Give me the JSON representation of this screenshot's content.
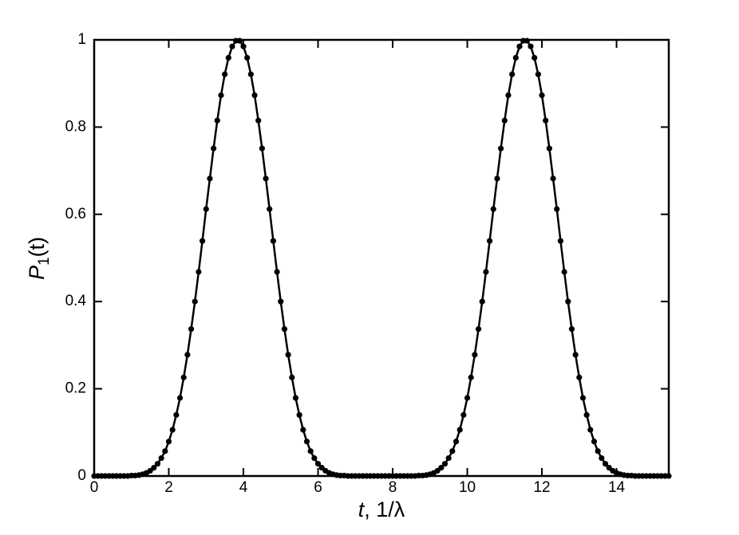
{
  "chart_data": {
    "type": "line",
    "ylabel_parts": [
      "P",
      "1",
      "(t)"
    ],
    "xlabel_parts": [
      "t",
      ", 1/λ"
    ],
    "x": [
      0,
      0.1,
      0.2,
      0.3,
      0.4,
      0.5,
      0.6,
      0.7,
      0.8,
      0.9,
      1,
      1.1,
      1.2,
      1.3,
      1.4,
      1.5,
      1.6,
      1.7,
      1.8,
      1.9,
      2,
      2.1,
      2.2,
      2.3,
      2.4,
      2.5,
      2.6,
      2.7,
      2.8,
      2.9,
      3,
      3.1,
      3.2,
      3.3,
      3.4,
      3.5,
      3.6,
      3.7,
      3.8,
      3.9,
      4,
      4.1,
      4.2,
      4.3,
      4.4,
      4.5,
      4.6,
      4.7,
      4.8,
      4.9,
      5,
      5.1,
      5.2,
      5.3,
      5.4,
      5.5,
      5.6,
      5.7,
      5.8,
      5.9,
      6,
      6.1,
      6.2,
      6.3,
      6.4,
      6.5,
      6.6,
      6.7,
      6.8,
      6.9,
      7,
      7.1,
      7.2,
      7.3,
      7.4,
      7.5,
      7.6,
      7.7,
      7.8,
      7.9,
      8,
      8.1,
      8.2,
      8.3,
      8.4,
      8.5,
      8.6,
      8.7,
      8.8,
      8.9,
      9,
      9.1,
      9.2,
      9.3,
      9.4,
      9.5,
      9.6,
      9.7,
      9.8,
      9.9,
      10,
      10.1,
      10.2,
      10.3,
      10.4,
      10.5,
      10.6,
      10.7,
      10.8,
      10.9,
      11,
      11.1,
      11.2,
      11.3,
      11.4,
      11.5,
      11.6,
      11.7,
      11.8,
      11.9,
      12,
      12.1,
      12.2,
      12.3,
      12.4,
      12.5,
      12.6,
      12.7,
      12.8,
      12.9,
      13,
      13.1,
      13.2,
      13.3,
      13.4,
      13.5,
      13.6,
      13.7,
      13.8,
      13.9,
      14,
      14.1,
      14.2,
      14.3,
      14.4,
      14.5,
      14.6,
      14.7,
      14.8,
      14.9,
      15,
      15.1,
      15.2,
      15.3,
      15.4
    ],
    "series": [
      {
        "color": "#000000",
        "values": [
          0,
          0,
          0,
          0,
          0,
          0,
          0,
          0,
          0,
          0,
          0.001,
          0.001,
          0.002,
          0.004,
          0.007,
          0.012,
          0.019,
          0.028,
          0.041,
          0.057,
          0.079,
          0.106,
          0.14,
          0.179,
          0.226,
          0.278,
          0.337,
          0.4,
          0.468,
          0.539,
          0.612,
          0.682,
          0.751,
          0.815,
          0.873,
          0.921,
          0.959,
          0.985,
          0.998,
          0.998,
          0.985,
          0.959,
          0.921,
          0.873,
          0.815,
          0.751,
          0.682,
          0.612,
          0.539,
          0.468,
          0.4,
          0.337,
          0.278,
          0.226,
          0.179,
          0.14,
          0.106,
          0.079,
          0.057,
          0.041,
          0.028,
          0.019,
          0.012,
          0.007,
          0.004,
          0.002,
          0.001,
          0.001,
          0,
          0,
          0,
          0,
          0,
          0,
          0,
          0,
          0,
          0,
          0,
          0,
          0,
          0,
          0,
          0,
          0,
          0,
          0,
          0.001,
          0.001,
          0.002,
          0.004,
          0.007,
          0.012,
          0.019,
          0.028,
          0.041,
          0.057,
          0.079,
          0.106,
          0.14,
          0.179,
          0.226,
          0.278,
          0.337,
          0.4,
          0.468,
          0.539,
          0.612,
          0.682,
          0.751,
          0.815,
          0.873,
          0.921,
          0.959,
          0.985,
          0.998,
          0.998,
          0.985,
          0.959,
          0.921,
          0.873,
          0.815,
          0.751,
          0.682,
          0.612,
          0.539,
          0.468,
          0.4,
          0.337,
          0.278,
          0.226,
          0.179,
          0.14,
          0.106,
          0.079,
          0.057,
          0.041,
          0.028,
          0.019,
          0.012,
          0.007,
          0.004,
          0.002,
          0.001,
          0.001,
          0,
          0,
          0,
          0,
          0,
          0,
          0,
          0,
          0,
          0
        ]
      }
    ],
    "xlim": [
      0,
      15.4
    ],
    "ylim": [
      0,
      1
    ],
    "xticks": [
      0,
      2,
      4,
      6,
      8,
      10,
      12,
      14
    ],
    "yticks": [
      0,
      0.2,
      0.4,
      0.6,
      0.8,
      1
    ],
    "markers": true
  }
}
